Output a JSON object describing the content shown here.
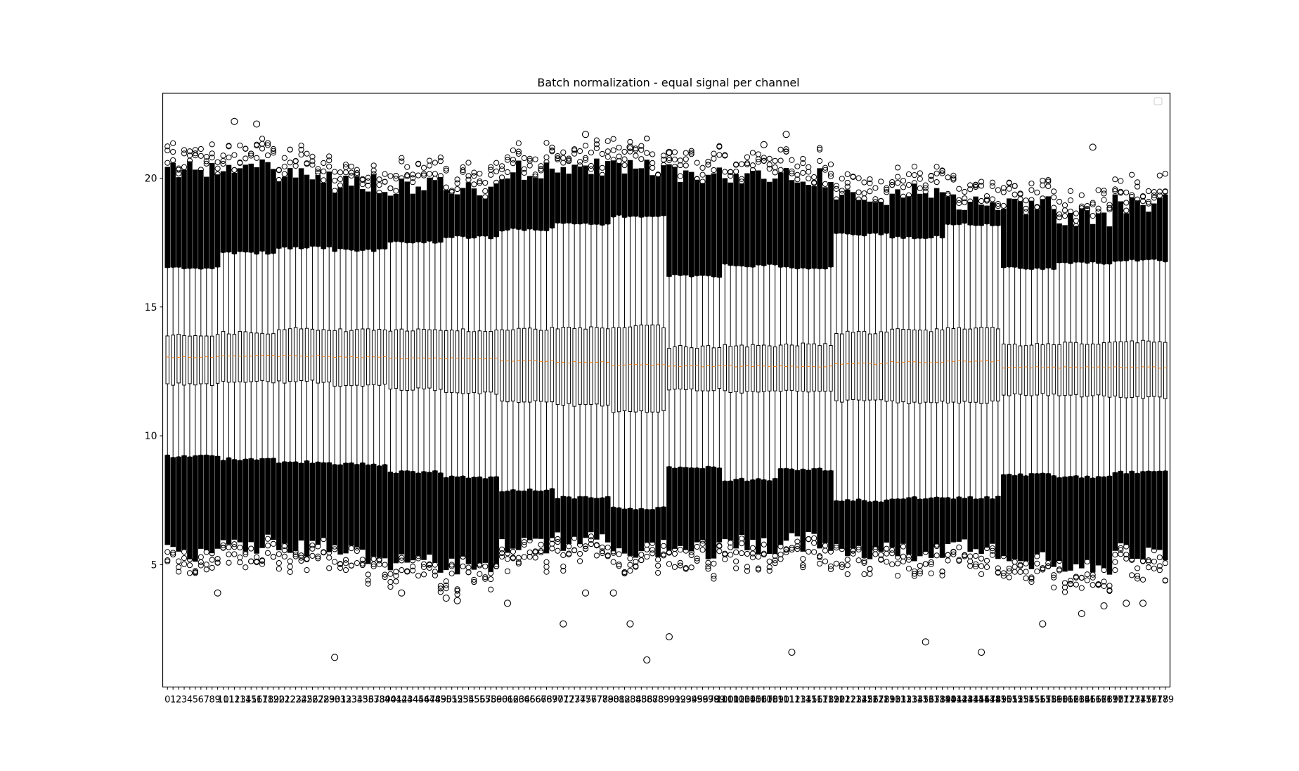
{
  "chart_data": {
    "type": "box",
    "title": "Batch normalization - equal signal per channel",
    "xlabel": "",
    "ylabel": "",
    "ylim": [
      0.25,
      23.3
    ],
    "yticks": [
      5,
      10,
      15,
      20
    ],
    "legend": "top-right (empty)",
    "grid": false,
    "n_boxes": 180,
    "x_tick_labels": "0,1,2,3,…,179 (one per box, overlapping)",
    "segments": [
      {
        "boxes": [
          0,
          9
        ],
        "q3": 13.9,
        "median": 13.05,
        "q1": 12.0,
        "whisker_high": 16.5,
        "whisker_low": 9.2,
        "outlier_high": 20.3,
        "outlier_low": 5.5
      },
      {
        "boxes": [
          10,
          19
        ],
        "q3": 14.0,
        "median": 13.1,
        "q1": 12.1,
        "whisker_high": 17.1,
        "whisker_low": 9.1,
        "outlier_high": 20.5,
        "outlier_low": 5.8
      },
      {
        "boxes": [
          20,
          29
        ],
        "q3": 14.15,
        "median": 13.1,
        "q1": 12.1,
        "whisker_high": 17.3,
        "whisker_low": 9.0,
        "outlier_high": 20.0,
        "outlier_low": 5.7
      },
      {
        "boxes": [
          30,
          39
        ],
        "q3": 14.1,
        "median": 13.05,
        "q1": 11.95,
        "whisker_high": 17.2,
        "whisker_low": 8.9,
        "outlier_high": 19.8,
        "outlier_low": 5.4
      },
      {
        "boxes": [
          40,
          49
        ],
        "q3": 14.1,
        "median": 13.0,
        "q1": 11.8,
        "whisker_high": 17.5,
        "whisker_low": 8.6,
        "outlier_high": 19.7,
        "outlier_low": 5.0
      },
      {
        "boxes": [
          50,
          59
        ],
        "q3": 14.1,
        "median": 13.0,
        "q1": 11.65,
        "whisker_high": 17.7,
        "whisker_low": 8.4,
        "outlier_high": 19.6,
        "outlier_low": 5.0
      },
      {
        "boxes": [
          60,
          69
        ],
        "q3": 14.15,
        "median": 12.9,
        "q1": 11.35,
        "whisker_high": 18.0,
        "whisker_low": 7.9,
        "outlier_high": 20.3,
        "outlier_low": 5.8
      },
      {
        "boxes": [
          70,
          79
        ],
        "q3": 14.2,
        "median": 12.85,
        "q1": 11.2,
        "whisker_high": 18.2,
        "whisker_low": 7.6,
        "outlier_high": 20.5,
        "outlier_low": 5.9
      },
      {
        "boxes": [
          80,
          89
        ],
        "q3": 14.25,
        "median": 12.75,
        "q1": 10.95,
        "whisker_high": 18.5,
        "whisker_low": 7.2,
        "outlier_high": 20.4,
        "outlier_low": 5.6
      },
      {
        "boxes": [
          90,
          99
        ],
        "q3": 13.45,
        "median": 12.7,
        "q1": 11.8,
        "whisker_high": 16.2,
        "whisker_low": 8.8,
        "outlier_high": 20.2,
        "outlier_low": 5.6
      },
      {
        "boxes": [
          100,
          109
        ],
        "q3": 13.5,
        "median": 12.7,
        "q1": 11.7,
        "whisker_high": 16.6,
        "whisker_low": 8.3,
        "outlier_high": 20.1,
        "outlier_low": 5.8
      },
      {
        "boxes": [
          110,
          119
        ],
        "q3": 13.55,
        "median": 12.7,
        "q1": 11.75,
        "whisker_high": 16.5,
        "whisker_low": 8.7,
        "outlier_high": 20.0,
        "outlier_low": 5.9
      },
      {
        "boxes": [
          120,
          129
        ],
        "q3": 14.0,
        "median": 12.8,
        "q1": 11.35,
        "whisker_high": 17.8,
        "whisker_low": 7.5,
        "outlier_high": 19.2,
        "outlier_low": 5.5
      },
      {
        "boxes": [
          130,
          139
        ],
        "q3": 14.1,
        "median": 12.85,
        "q1": 11.3,
        "whisker_high": 17.7,
        "whisker_low": 7.6,
        "outlier_high": 19.4,
        "outlier_low": 5.5
      },
      {
        "boxes": [
          140,
          149
        ],
        "q3": 14.2,
        "median": 12.9,
        "q1": 11.3,
        "whisker_high": 18.2,
        "whisker_low": 7.6,
        "outlier_high": 19.1,
        "outlier_low": 5.6
      },
      {
        "boxes": [
          150,
          159
        ],
        "q3": 13.55,
        "median": 12.65,
        "q1": 11.6,
        "whisker_high": 16.5,
        "whisker_low": 8.5,
        "outlier_high": 18.9,
        "outlier_low": 5.1
      },
      {
        "boxes": [
          160,
          169
        ],
        "q3": 13.6,
        "median": 12.65,
        "q1": 11.55,
        "whisker_high": 16.7,
        "whisker_low": 8.4,
        "outlier_high": 18.5,
        "outlier_low": 5.0
      },
      {
        "boxes": [
          170,
          179
        ],
        "q3": 13.65,
        "median": 12.65,
        "q1": 11.5,
        "whisker_high": 16.8,
        "whisker_low": 8.6,
        "outlier_high": 19.0,
        "outlier_low": 5.5
      }
    ],
    "extreme_outliers": [
      {
        "box": 12,
        "y": 22.2
      },
      {
        "box": 16,
        "y": 22.1
      },
      {
        "box": 9,
        "y": 3.9
      },
      {
        "box": 30,
        "y": 1.4
      },
      {
        "box": 42,
        "y": 3.9
      },
      {
        "box": 50,
        "y": 3.7
      },
      {
        "box": 52,
        "y": 3.6
      },
      {
        "box": 61,
        "y": 3.5
      },
      {
        "box": 71,
        "y": 2.7
      },
      {
        "box": 75,
        "y": 21.7
      },
      {
        "box": 75,
        "y": 3.9
      },
      {
        "box": 80,
        "y": 3.9
      },
      {
        "box": 83,
        "y": 21.2
      },
      {
        "box": 83,
        "y": 2.7
      },
      {
        "box": 86,
        "y": 1.3
      },
      {
        "box": 90,
        "y": 2.2
      },
      {
        "box": 90,
        "y": 21.0
      },
      {
        "box": 107,
        "y": 21.3
      },
      {
        "box": 111,
        "y": 21.7
      },
      {
        "box": 112,
        "y": 1.6
      },
      {
        "box": 136,
        "y": 2.0
      },
      {
        "box": 146,
        "y": 1.6
      },
      {
        "box": 157,
        "y": 2.7
      },
      {
        "box": 164,
        "y": 3.1
      },
      {
        "box": 166,
        "y": 21.2
      },
      {
        "box": 168,
        "y": 3.4
      },
      {
        "box": 172,
        "y": 3.5
      },
      {
        "box": 175,
        "y": 3.5
      }
    ]
  }
}
